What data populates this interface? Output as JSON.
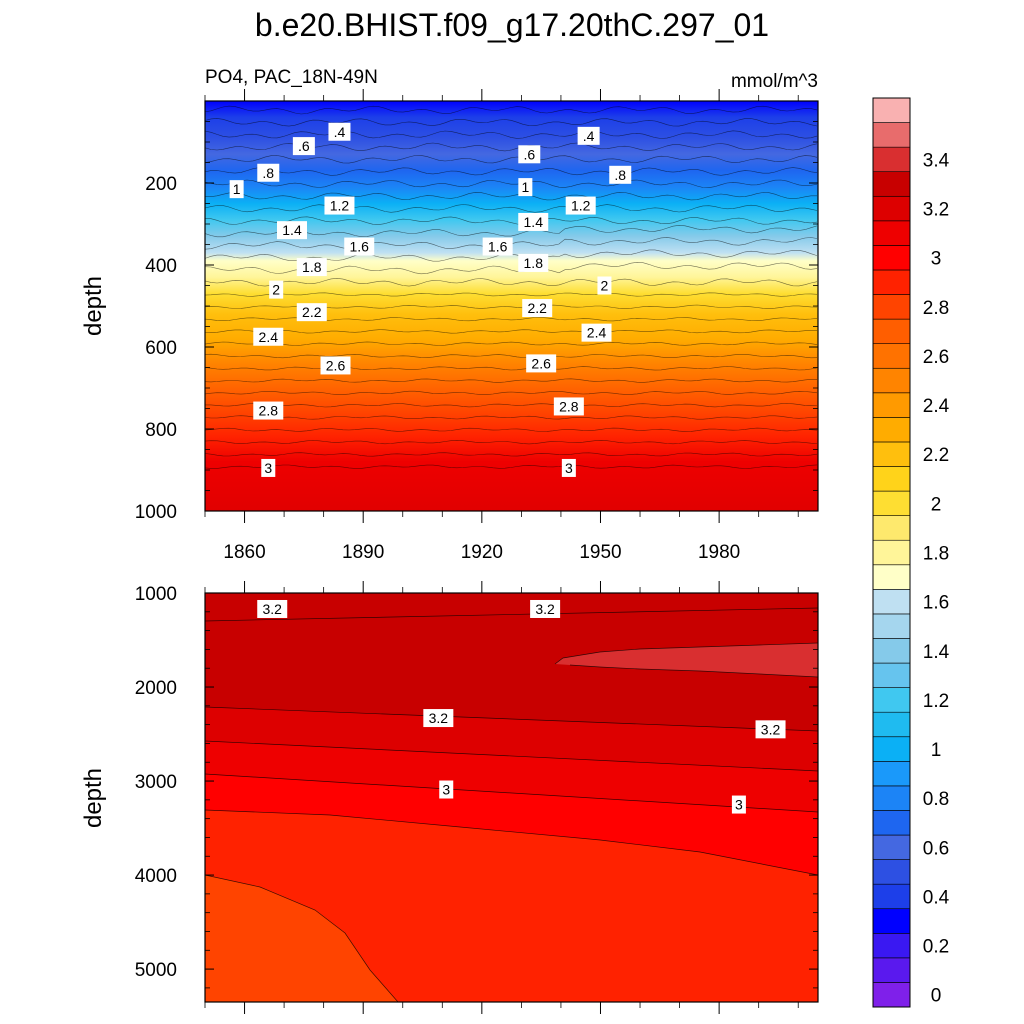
{
  "chart_data": {
    "type": "heatmap",
    "title": "b.e20.BHIST.f09_g17.20thC.297_01",
    "variable_label": "PO4, PAC_18N-49N",
    "units_label": "mmol/m^3",
    "colorbar": {
      "tick_labels": [
        "0",
        "0.2",
        "0.4",
        "0.6",
        "0.8",
        "1",
        "1.2",
        "1.4",
        "1.6",
        "1.8",
        "2",
        "2.2",
        "2.4",
        "2.6",
        "2.8",
        "3",
        "3.2",
        "3.4"
      ],
      "levels": [
        0,
        0.1,
        0.2,
        0.3,
        0.4,
        0.5,
        0.6,
        0.7,
        0.8,
        0.9,
        1.0,
        1.1,
        1.2,
        1.3,
        1.4,
        1.5,
        1.6,
        1.7,
        1.8,
        1.9,
        2.0,
        2.1,
        2.2,
        2.3,
        2.4,
        2.5,
        2.6,
        2.7,
        2.8,
        2.9,
        3.0,
        3.1,
        3.2,
        3.3,
        3.4,
        3.5,
        3.6
      ],
      "colors": [
        "#7f20ea",
        "#5a19ee",
        "#3a18f2",
        "#0000ff",
        "#1d3fe9",
        "#2d50e3",
        "#4468e1",
        "#1e66f0",
        "#1c84f6",
        "#1a99fa",
        "#0bb0f5",
        "#1fbbf0",
        "#40c8f0",
        "#66c4ee",
        "#85caea",
        "#a5d6ee",
        "#bfe0f2",
        "#ffffc8",
        "#fff599",
        "#fee96d",
        "#fede32",
        "#ffd31a",
        "#ffbf0d",
        "#ffac00",
        "#ff9a00",
        "#ff8400",
        "#ff7200",
        "#ff5e00",
        "#ff4400",
        "#ff2200",
        "#ff0000",
        "#ee0000",
        "#dd0000",
        "#c80000",
        "#d92f30",
        "#e86c6c",
        "#f9b1b1"
      ]
    },
    "panels": [
      {
        "name": "upper",
        "xlabel": "",
        "ylabel": "depth",
        "x_ticks": [
          1860,
          1890,
          1920,
          1950,
          1980
        ],
        "x_range": [
          1850,
          2005
        ],
        "y_range": [
          0,
          1000
        ],
        "y_ticks": [
          200,
          400,
          600,
          800,
          1000
        ],
        "contour_labels": [
          {
            "text": ".4",
            "year": 1884,
            "depth": 75
          },
          {
            "text": ".4",
            "year": 1947,
            "depth": 85
          },
          {
            "text": ".6",
            "year": 1875,
            "depth": 110
          },
          {
            "text": ".6",
            "year": 1932,
            "depth": 130
          },
          {
            "text": ".8",
            "year": 1866,
            "depth": 175
          },
          {
            "text": ".8",
            "year": 1955,
            "depth": 180
          },
          {
            "text": "1",
            "year": 1858,
            "depth": 215
          },
          {
            "text": "1",
            "year": 1931,
            "depth": 210
          },
          {
            "text": "1.2",
            "year": 1884,
            "depth": 255
          },
          {
            "text": "1.2",
            "year": 1945,
            "depth": 255
          },
          {
            "text": "1.4",
            "year": 1872,
            "depth": 315
          },
          {
            "text": "1.4",
            "year": 1933,
            "depth": 295
          },
          {
            "text": "1.6",
            "year": 1889,
            "depth": 355
          },
          {
            "text": "1.6",
            "year": 1924,
            "depth": 355
          },
          {
            "text": "1.8",
            "year": 1877,
            "depth": 405
          },
          {
            "text": "1.8",
            "year": 1933,
            "depth": 395
          },
          {
            "text": "2",
            "year": 1868,
            "depth": 460
          },
          {
            "text": "2",
            "year": 1951,
            "depth": 450
          },
          {
            "text": "2.2",
            "year": 1877,
            "depth": 515
          },
          {
            "text": "2.2",
            "year": 1934,
            "depth": 505
          },
          {
            "text": "2.4",
            "year": 1866,
            "depth": 575
          },
          {
            "text": "2.4",
            "year": 1949,
            "depth": 565
          },
          {
            "text": "2.6",
            "year": 1883,
            "depth": 645
          },
          {
            "text": "2.6",
            "year": 1935,
            "depth": 640
          },
          {
            "text": "2.8",
            "year": 1866,
            "depth": 755
          },
          {
            "text": "2.8",
            "year": 1942,
            "depth": 745
          },
          {
            "text": "3",
            "year": 1866,
            "depth": 895
          },
          {
            "text": "3",
            "year": 1942,
            "depth": 895
          }
        ]
      },
      {
        "name": "lower",
        "xlabel": "",
        "ylabel": "depth",
        "x_range": [
          1850,
          2005
        ],
        "y_range": [
          1000,
          5350
        ],
        "y_ticks": [
          1000,
          2000,
          3000,
          4000,
          5000
        ],
        "contour_labels": [
          {
            "text": "3.2",
            "year": 1867,
            "depth": 1170
          },
          {
            "text": "3.2",
            "year": 1936,
            "depth": 1170
          },
          {
            "text": "3.2",
            "year": 1909,
            "depth": 2330
          },
          {
            "text": "3.2",
            "year": 1993,
            "depth": 2450
          },
          {
            "text": "3",
            "year": 1911,
            "depth": 3090
          },
          {
            "text": "3",
            "year": 1985,
            "depth": 3250
          }
        ]
      }
    ]
  }
}
